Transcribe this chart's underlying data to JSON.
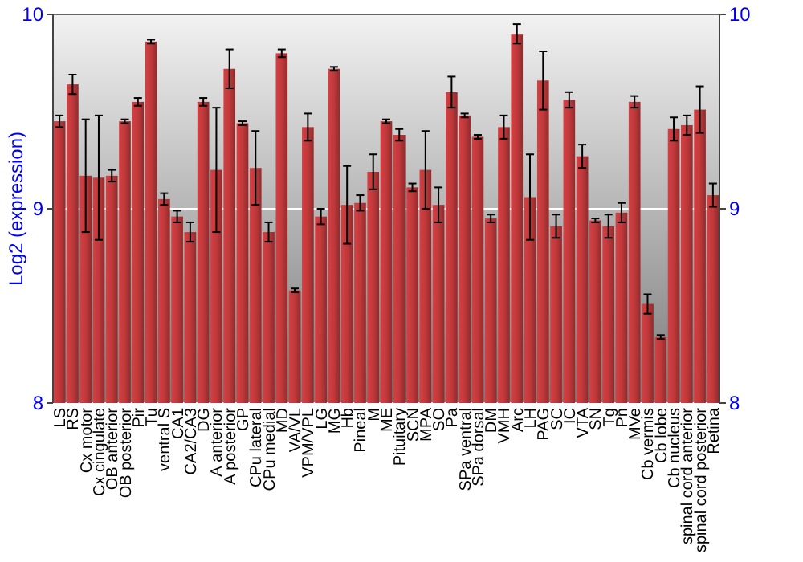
{
  "chart_data": {
    "type": "bar",
    "ylabel": "Log2 (expression)",
    "categories": [
      "LS",
      "RS",
      "Cx motor",
      "Cx cingulate",
      "OB anterior",
      "OB posterior",
      "Pir",
      "Tu",
      "ventral S",
      "CA1",
      "CA2/CA3",
      "DG",
      "A anterior",
      "A posterior",
      "GP",
      "CPu lateral",
      "CPu medial",
      "MD",
      "VA/VL",
      "VPM/VPL",
      "LG",
      "MG",
      "Hb",
      "Pineal",
      "M",
      "ME",
      "Pituitary",
      "SCN",
      "MPA",
      "SO",
      "Pa",
      "SPa ventral",
      "SPa dorsal",
      "DM",
      "VMH",
      "Arc",
      "LH",
      "PAG",
      "SC",
      "IC",
      "VTA",
      "SN",
      "Tg",
      "Pn",
      "MVe",
      "Cb vermis",
      "Cb lobe",
      "Cb nucleus",
      "spinal cord anterior",
      "spinal cord posterior",
      "Retina"
    ],
    "values": [
      9.45,
      9.64,
      9.17,
      9.16,
      9.17,
      9.45,
      9.55,
      9.86,
      9.05,
      8.96,
      8.88,
      9.55,
      9.2,
      9.72,
      9.44,
      9.21,
      8.88,
      9.8,
      8.58,
      9.42,
      8.96,
      9.72,
      9.02,
      9.03,
      9.19,
      9.45,
      9.38,
      9.11,
      9.2,
      9.02,
      9.6,
      9.48,
      9.37,
      8.95,
      9.42,
      9.9,
      9.06,
      9.66,
      8.91,
      9.56,
      9.27,
      8.94,
      8.91,
      8.98,
      9.55,
      8.51,
      8.34,
      9.41,
      9.43,
      9.51,
      9.07
    ],
    "errors": [
      0.03,
      0.05,
      0.29,
      0.32,
      0.03,
      0.01,
      0.02,
      0.01,
      0.03,
      0.03,
      0.05,
      0.02,
      0.32,
      0.1,
      0.01,
      0.19,
      0.05,
      0.02,
      0.01,
      0.07,
      0.04,
      0.01,
      0.2,
      0.04,
      0.09,
      0.01,
      0.03,
      0.02,
      0.2,
      0.09,
      0.08,
      0.01,
      0.01,
      0.02,
      0.06,
      0.05,
      0.22,
      0.15,
      0.06,
      0.04,
      0.06,
      0.01,
      0.06,
      0.05,
      0.03,
      0.05,
      0.01,
      0.06,
      0.05,
      0.12,
      0.06
    ],
    "color": "#c0393b",
    "ylim": [
      8,
      10
    ],
    "yticks": [
      8,
      9,
      10
    ],
    "y2lim": [
      8,
      10
    ],
    "y2ticks": [
      8,
      9,
      10
    ],
    "grid": "y"
  }
}
